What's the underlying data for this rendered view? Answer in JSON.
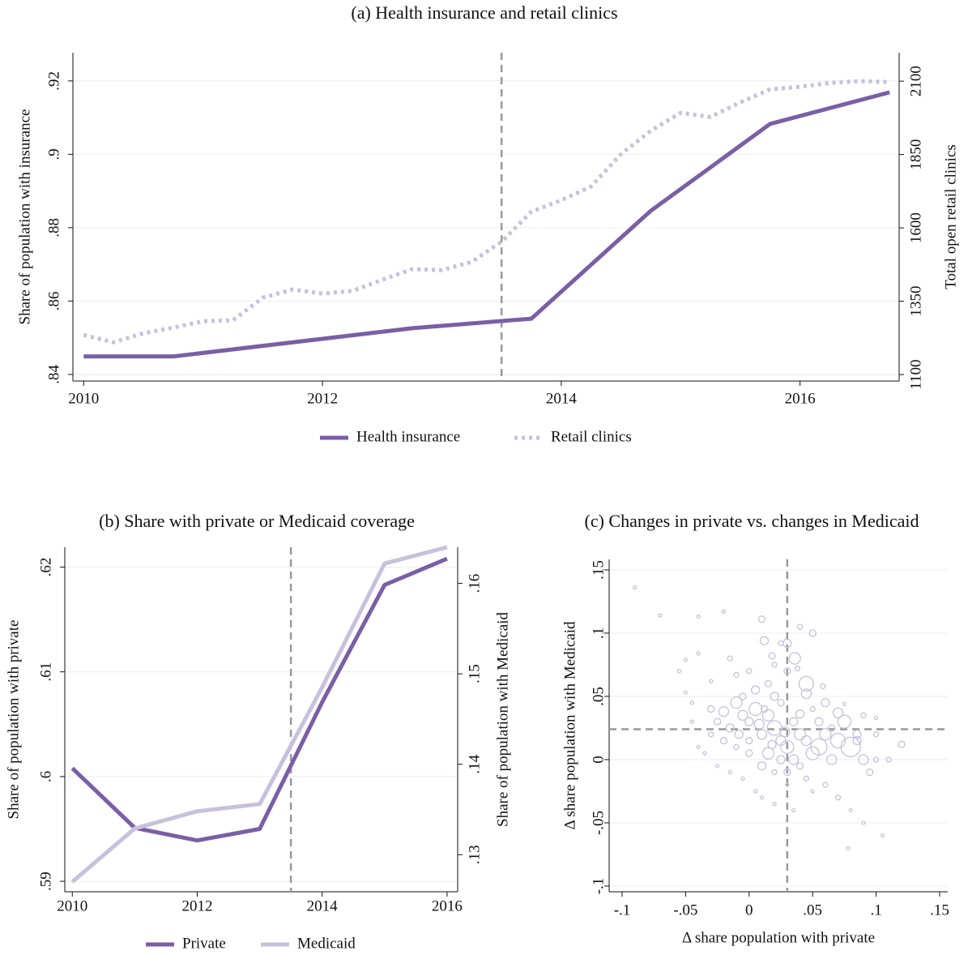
{
  "chart_data": [
    {
      "type": "line",
      "title": "(a) Health insurance and retail clinics",
      "y_label": "Share of population with insurance",
      "y2_label": "Total open retail clinics",
      "xlim": [
        2009.91,
        2016.83
      ],
      "xticks": [
        2010,
        2012,
        2014,
        2016
      ],
      "ylim": [
        0.8382,
        0.9277
      ],
      "yticks": [
        {
          "value": 0.84,
          "label": ".84"
        },
        {
          "value": 0.86,
          "label": ".86"
        },
        {
          "value": 0.88,
          "label": ".88"
        },
        {
          "value": 0.9,
          "label": ".9"
        },
        {
          "value": 0.92,
          "label": ".92"
        }
      ],
      "y2lim": [
        1078,
        2197
      ],
      "y2ticks": [
        1100,
        1350,
        1600,
        1850,
        2100
      ],
      "grid": true,
      "vlines": [
        2013.5
      ],
      "series": [
        {
          "name": "Health insurance",
          "color": "#7a5ea6",
          "style": "solid",
          "x": [
            2010,
            2010.75,
            2012.75,
            2013.75,
            2014.75,
            2015.75,
            2016.75
          ],
          "values": [
            0.8449,
            0.8449,
            0.8526,
            0.8552,
            0.8846,
            0.9083,
            0.9169
          ]
        },
        {
          "name": "Retail clinics",
          "color": "#c8c0dc",
          "style": "dotted",
          "axis": "y2",
          "x": [
            2010,
            2010.25,
            2010.5,
            2010.75,
            2011,
            2011.25,
            2011.5,
            2011.75,
            2012,
            2012.25,
            2012.5,
            2012.75,
            2013,
            2013.25,
            2013.5,
            2013.75,
            2014,
            2014.25,
            2014.5,
            2014.75,
            2015,
            2015.25,
            2015.5,
            2015.75,
            2016,
            2016.25,
            2016.5,
            2016.75
          ],
          "values": [
            1235,
            1210,
            1241,
            1260,
            1282,
            1285,
            1362,
            1390,
            1376,
            1385,
            1423,
            1459,
            1456,
            1484,
            1553,
            1655,
            1694,
            1741,
            1851,
            1931,
            1992,
            1978,
            2028,
            2072,
            2081,
            2094,
            2100,
            2097
          ]
        }
      ]
    },
    {
      "type": "line",
      "title": "(b) Share with private or Medicaid coverage",
      "y_label": "Share of population with private",
      "y2_label": "Share of population with Medicaid",
      "xlim": [
        2009.88,
        2016.17
      ],
      "xticks": [
        2010,
        2012,
        2014,
        2016
      ],
      "ylim": [
        0.589,
        0.6219
      ],
      "yticks": [
        {
          "value": 0.59,
          "label": ".59"
        },
        {
          "value": 0.6,
          "label": ".6"
        },
        {
          "value": 0.61,
          "label": ".61"
        },
        {
          "value": 0.62,
          "label": ".62"
        }
      ],
      "y2lim": [
        0.1259,
        0.164
      ],
      "y2ticks": [
        {
          "value": 0.13,
          "label": ".13"
        },
        {
          "value": 0.14,
          "label": ".14"
        },
        {
          "value": 0.15,
          "label": ".15"
        },
        {
          "value": 0.16,
          "label": ".16"
        }
      ],
      "grid": true,
      "vlines": [
        2013.5
      ],
      "x": [
        2010,
        2011,
        2012,
        2013,
        2014,
        2015,
        2016
      ],
      "series": [
        {
          "name": "Private",
          "color": "#7a5ea6",
          "style": "solid",
          "values": [
            0.6008,
            0.5951,
            0.5939,
            0.595,
            0.6071,
            0.6183,
            0.6208
          ]
        },
        {
          "name": "Medicaid",
          "color": "#c8c0dc",
          "style": "solid",
          "axis": "y2",
          "values": [
            0.127,
            0.1329,
            0.1348,
            0.1356,
            0.1485,
            0.1622,
            0.164
          ]
        }
      ]
    },
    {
      "type": "scatter",
      "title": "(c) Changes in private vs. changes in Medicaid",
      "x_label": "Δ share population with private",
      "y_label": "Δ share population with Medicaid",
      "xlim": [
        -0.1102,
        0.1564
      ],
      "xticks": [
        {
          "value": -0.1,
          "label": "-.1"
        },
        {
          "value": -0.05,
          "label": "-.05"
        },
        0,
        {
          "value": 0.05,
          "label": ".05"
        },
        {
          "value": 0.1,
          "label": ".1"
        },
        {
          "value": 0.15,
          "label": ".15"
        }
      ],
      "ylim": [
        -0.1045,
        0.1583
      ],
      "yticks": [
        {
          "value": -0.1,
          "label": "-.1"
        },
        {
          "value": -0.05,
          "label": "-.05"
        },
        0,
        {
          "value": 0.05,
          "label": ".05"
        },
        {
          "value": 0.1,
          "label": ".1"
        },
        {
          "value": 0.15,
          "label": ".15"
        }
      ],
      "grid": true,
      "vlines": [
        0.03
      ],
      "hlines": [
        0.024
      ],
      "color": "#c8c0dc",
      "x": [
        -0.09,
        -0.07,
        -0.04,
        -0.02,
        0.01,
        0.04,
        0.03,
        0.036,
        0.05,
        0.045,
        0.045,
        0.012,
        0.018,
        -0.05,
        -0.055,
        -0.05,
        -0.045,
        -0.04,
        -0.03,
        -0.015,
        -0.01,
        -0.03,
        -0.025,
        -0.02,
        -0.015,
        -0.01,
        -0.005,
        0,
        0.005,
        0.01,
        0.015,
        0.02,
        0.025,
        0.03,
        0.035,
        0.04,
        0.045,
        0.05,
        0.055,
        0.06,
        0.065,
        0.07,
        0.075,
        0.08,
        0.085,
        0.09,
        0.095,
        0.1,
        0.11,
        0.12,
        0.1,
        0.1,
        0.105,
        0.09,
        0.08,
        0.078,
        0.07,
        0.06,
        0.05,
        0.045,
        0.04,
        0.03,
        0.02,
        0.01,
        0,
        -0.01,
        -0.02,
        -0.03,
        -0.035,
        -0.04,
        -0.025,
        -0.015,
        -0.005,
        0.005,
        0.01,
        0.02,
        0.03,
        0.035,
        0.015,
        0.02,
        0.025,
        0.005,
        -0.005,
        0,
        0.03,
        0.06,
        0.07,
        0.075,
        0.055,
        0.065,
        0.085,
        0.09,
        0.015,
        0.025,
        0.035,
        0.012,
        -0.008,
        0,
        0.008,
        0.018,
        0.028,
        0.04,
        0.05,
        -0.045,
        0.02,
        0.025,
        0.038,
        0.058
      ],
      "values": [
        0.136,
        0.114,
        0.113,
        0.117,
        0.111,
        0.105,
        0.092,
        0.08,
        0.1,
        0.06,
        0.052,
        0.094,
        0.082,
        0.079,
        0.07,
        0.053,
        0.045,
        0.084,
        0.062,
        0.08,
        0.067,
        0.04,
        0.03,
        0.038,
        0.025,
        0.045,
        0.035,
        0.03,
        0.04,
        0.02,
        0.035,
        0.025,
        0.015,
        0.01,
        0.03,
        0.02,
        0.015,
        0.005,
        0.01,
        0.02,
        0,
        0.015,
        0.03,
        0.01,
        0.02,
        0,
        -0.01,
        0,
        0,
        0.012,
        0.02,
        0.033,
        -0.06,
        -0.05,
        -0.04,
        -0.07,
        -0.03,
        -0.02,
        -0.025,
        -0.015,
        -0.005,
        -0.01,
        -0.01,
        -0.005,
        0.005,
        0.01,
        0.015,
        0.02,
        0.005,
        0.01,
        -0.005,
        -0.01,
        -0.015,
        -0.025,
        -0.03,
        -0.035,
        -0.02,
        -0.04,
        0.06,
        0.05,
        0.045,
        0.055,
        0.05,
        0.07,
        0.07,
        0.045,
        0.037,
        0.044,
        0.03,
        0.025,
        0.015,
        0.035,
        0.005,
        0,
        0,
        0.04,
        0.02,
        0.015,
        0.028,
        0.012,
        0.022,
        0.036,
        0.04,
        0.03,
        0.075,
        0.092,
        0.072,
        0.058
      ],
      "sizes": [
        2,
        2,
        2,
        2,
        4,
        3,
        5,
        7,
        4,
        9,
        6,
        5,
        4,
        2,
        2,
        2,
        2,
        2,
        2,
        3,
        3,
        4,
        4,
        6,
        5,
        7,
        6,
        5,
        8,
        6,
        7,
        9,
        6,
        8,
        5,
        7,
        6,
        8,
        10,
        7,
        6,
        9,
        8,
        12,
        5,
        6,
        4,
        3,
        3,
        4,
        3,
        2,
        2,
        2,
        2,
        2,
        3,
        3,
        2,
        3,
        4,
        4,
        3,
        5,
        4,
        3,
        4,
        3,
        2,
        2,
        2,
        2,
        2,
        2,
        2,
        2,
        2,
        2,
        4,
        5,
        4,
        5,
        4,
        3,
        4,
        5,
        6,
        2,
        5,
        4,
        5,
        3,
        7,
        5,
        6,
        4,
        5,
        4,
        6,
        5,
        6,
        5,
        3,
        2,
        3,
        3,
        3,
        3
      ]
    }
  ]
}
